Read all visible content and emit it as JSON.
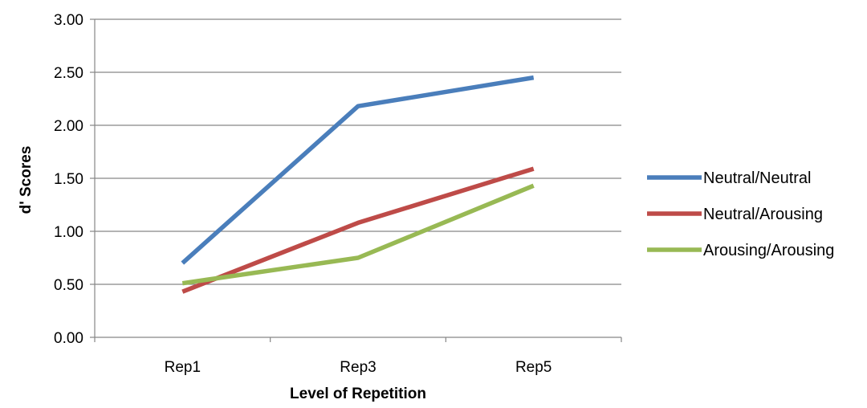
{
  "chart_data": {
    "type": "line",
    "title": "",
    "xlabel": "Level of Repetition",
    "ylabel": "d' Scores",
    "categories": [
      "Rep1",
      "Rep3",
      "Rep5"
    ],
    "ylim": [
      0,
      3
    ],
    "ytick_labels": [
      "0.00",
      "0.50",
      "1.00",
      "1.50",
      "2.00",
      "2.50",
      "3.00"
    ],
    "grid": true,
    "legend_position": "right",
    "series": [
      {
        "name": "Neutral/Neutral",
        "color": "#4a7ebb",
        "values": [
          0.7,
          2.18,
          2.45
        ]
      },
      {
        "name": "Neutral/Arousing",
        "color": "#be4b48",
        "values": [
          0.43,
          1.08,
          1.59
        ]
      },
      {
        "name": "Arousing/Arousing",
        "color": "#98b954",
        "values": [
          0.51,
          0.75,
          1.43
        ]
      }
    ]
  }
}
